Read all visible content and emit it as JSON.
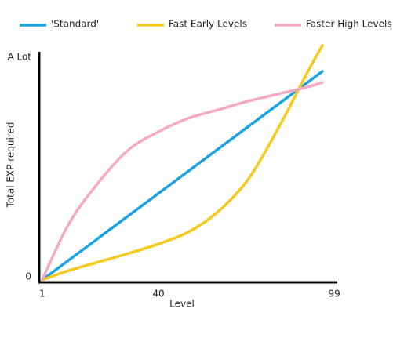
{
  "chart_data": {
    "type": "line",
    "xlabel": "Level",
    "ylabel": "Total EXP required",
    "xlim": [
      0,
      100
    ],
    "xticks": [
      1,
      40,
      99
    ],
    "ylim": [
      0,
      108
    ],
    "yticks": [
      0,
      {
        "value": 100,
        "label": "A Lot"
      }
    ],
    "grid": false,
    "legend": "top",
    "series": [
      {
        "name": "'Standard'",
        "color": "#1aa3e0",
        "x": [
          1,
          95
        ],
        "values": [
          0,
          95
        ]
      },
      {
        "name": "Fast Early Levels",
        "color": "#f7c81e",
        "x": [
          1,
          10,
          20,
          30,
          40,
          50,
          60,
          70,
          80,
          90,
          95
        ],
        "values": [
          0,
          4.3,
          8.2,
          12.1,
          16.4,
          21.8,
          31.1,
          45.7,
          68.6,
          94.6,
          106.8
        ]
      },
      {
        "name": "Faster High Levels",
        "color": "#f5a9c3",
        "x": [
          1,
          10,
          20,
          30,
          40,
          50,
          60,
          70,
          80,
          90,
          95
        ],
        "values": [
          0,
          25.7,
          44.6,
          59.3,
          67.5,
          73.6,
          77.5,
          81.4,
          84.6,
          87.9,
          90.0
        ]
      }
    ]
  }
}
